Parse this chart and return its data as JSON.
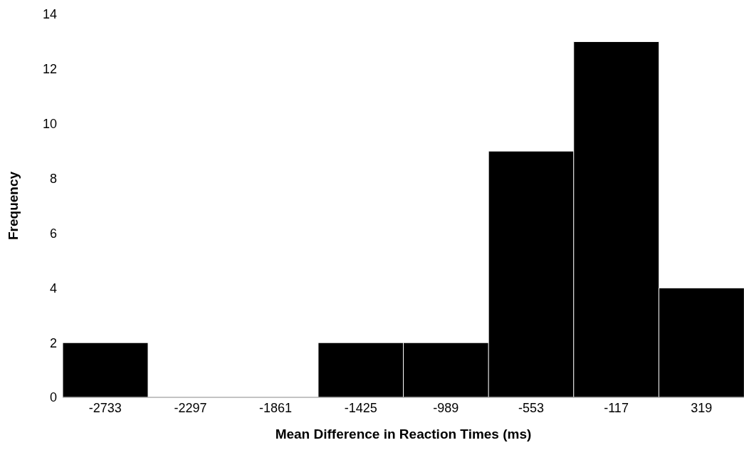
{
  "chart_data": {
    "type": "bar",
    "xlabel": "Mean Difference in Reaction Times (ms)",
    "ylabel": "Frequency",
    "categories": [
      "-2733",
      "-2297",
      "-1861",
      "-1425",
      "-989",
      "-553",
      "-117",
      "319"
    ],
    "values": [
      2,
      0,
      0,
      2,
      2,
      9,
      13,
      4
    ],
    "color": "#000000",
    "ylim": [
      0,
      14
    ],
    "yticks": [
      0,
      2,
      4,
      6,
      8,
      10,
      12,
      14
    ],
    "grid": false
  }
}
